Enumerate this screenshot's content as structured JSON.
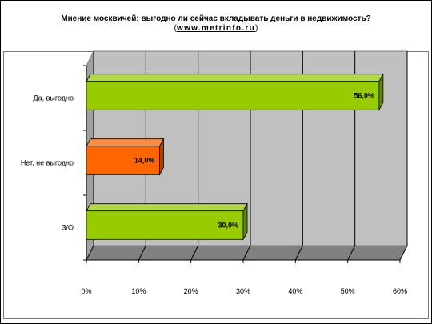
{
  "chart_data": {
    "type": "bar",
    "orientation": "horizontal",
    "title": "Мнение москвичей: выгодно ли сейчас вкладывать деньги в недвижимость?",
    "subtitle_site": "www.metrinfo.ru",
    "categories": [
      "Да, выгодно",
      "Нет, не выгодно",
      "З/О"
    ],
    "values": [
      56.0,
      14.0,
      30.0
    ],
    "value_labels": [
      "56,0%",
      "14,0%",
      "30,0%"
    ],
    "bar_colors": [
      "#99cc00",
      "#ff6600",
      "#99cc00"
    ],
    "xlim": [
      0,
      60
    ],
    "x_ticks": [
      "0%",
      "10%",
      "20%",
      "30%",
      "40%",
      "50%",
      "60%"
    ],
    "grid": true,
    "style": "3d"
  }
}
